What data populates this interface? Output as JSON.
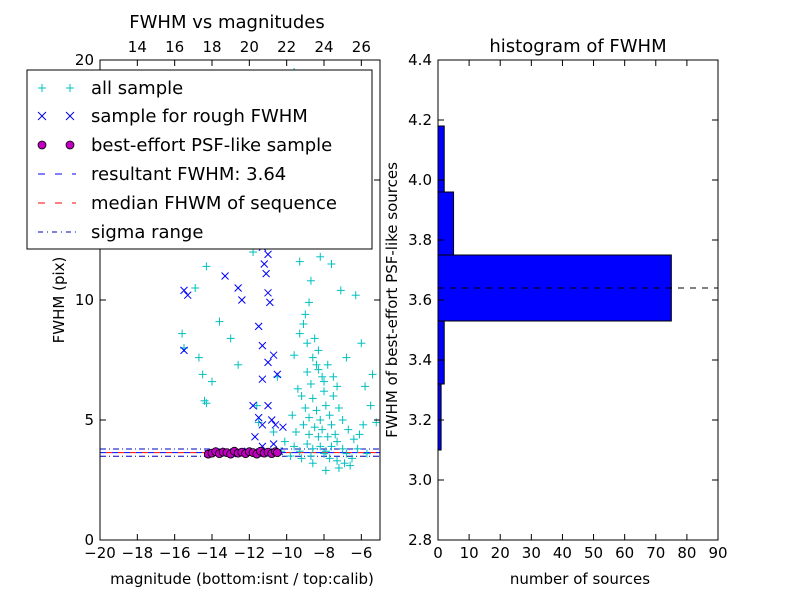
{
  "figure": {
    "colors": {
      "all_sample": "#00BFBF",
      "rough_sample": "#0000FF",
      "psf_face": "#BF00BF",
      "resultant": "#0000FF",
      "median": "#FF0000",
      "sigma": "#0000BF",
      "hist_bar": "#0000FF"
    }
  },
  "chart_data": [
    {
      "type": "scatter",
      "title": "FWHM vs magnitudes",
      "xlabel": "magnitude (bottom:isnt / top:calib)",
      "ylabel": "FWHM (pix)",
      "xlim": [
        -20,
        -5
      ],
      "ylim": [
        0,
        20
      ],
      "xticks": [
        -20,
        -18,
        -16,
        -14,
        -12,
        -10,
        -8,
        -6
      ],
      "xtick_labels": [
        "−20",
        "−18",
        "−16",
        "−14",
        "−12",
        "−10",
        "−8",
        "−6"
      ],
      "yticks": [
        0,
        5,
        10,
        15,
        20
      ],
      "ytick_labels": [
        "0",
        "5",
        "10",
        "15",
        "20"
      ],
      "top_xticks": [
        14,
        16,
        18,
        20,
        22,
        24,
        26
      ],
      "top_xtick_labels": [
        "14",
        "16",
        "18",
        "20",
        "22",
        "24",
        "26"
      ],
      "top_axis_offset": 32,
      "legend_position": "upper-left",
      "legend": [
        "all sample",
        "sample for rough FWHM",
        "best-effort PSF-like sample",
        "resultant FWHM: 3.64",
        "median FHWM of sequence",
        "sigma range"
      ],
      "series": [
        {
          "name": "all sample",
          "marker": "+",
          "points": [
            [
              -15.6,
              8.6
            ],
            [
              -15.5,
              8.0
            ],
            [
              -14.9,
              10.5
            ],
            [
              -14.7,
              7.6
            ],
            [
              -14.5,
              6.9
            ],
            [
              -14.4,
              5.8
            ],
            [
              -14.3,
              5.7
            ],
            [
              -14.0,
              6.6
            ],
            [
              -13.6,
              9.1
            ],
            [
              -13.0,
              8.4
            ],
            [
              -12.6,
              7.3
            ],
            [
              -13.4,
              13.7
            ],
            [
              -12.4,
              14.2
            ],
            [
              -14.3,
              11.4
            ],
            [
              -11.8,
              12.0
            ],
            [
              -11.6,
              5.6
            ],
            [
              -11.5,
              4.9
            ],
            [
              -11.0,
              12.5
            ],
            [
              -10.7,
              4.5
            ],
            [
              -10.5,
              6.8
            ],
            [
              -10.9,
              19.3
            ],
            [
              -12.2,
              19.2
            ],
            [
              -9.6,
              19.5
            ],
            [
              -9.9,
              18.9
            ],
            [
              -10.2,
              17.4
            ],
            [
              -9.1,
              16.6
            ],
            [
              -8.6,
              14.9
            ],
            [
              -8.9,
              12.7
            ],
            [
              -9.3,
              11.6
            ],
            [
              -8.2,
              11.8
            ],
            [
              -7.6,
              11.5
            ],
            [
              -7.8,
              12.9
            ],
            [
              -7.1,
              10.4
            ],
            [
              -6.3,
              10.2
            ],
            [
              -6.8,
              7.6
            ],
            [
              -6.0,
              8.2
            ],
            [
              -5.8,
              6.4
            ],
            [
              -5.4,
              6.9
            ],
            [
              -5.2,
              4.9
            ],
            [
              -5.5,
              5.6
            ],
            [
              -6.2,
              3.8
            ],
            [
              -5.7,
              3.6
            ],
            [
              -7.2,
              3.0
            ],
            [
              -7.9,
              2.9
            ],
            [
              -8.6,
              3.2
            ],
            [
              -9.2,
              3.4
            ],
            [
              -9.8,
              3.5
            ],
            [
              -10.3,
              3.7
            ],
            [
              -10.1,
              4.1
            ],
            [
              -9.7,
              5.2
            ],
            [
              -9.4,
              6.3
            ],
            [
              -9.6,
              7.7
            ],
            [
              -9.3,
              8.6
            ],
            [
              -9.0,
              9.4
            ],
            [
              -8.8,
              9.9
            ],
            [
              -8.7,
              10.8
            ],
            [
              -9.1,
              9.0
            ],
            [
              -8.5,
              8.4
            ],
            [
              -8.3,
              7.9
            ],
            [
              -8.4,
              7.3
            ],
            [
              -8.1,
              6.8
            ],
            [
              -8.0,
              6.2
            ],
            [
              -7.9,
              5.6
            ],
            [
              -7.7,
              5.2
            ],
            [
              -7.6,
              4.8
            ],
            [
              -7.4,
              4.4
            ],
            [
              -7.3,
              4.1
            ],
            [
              -7.0,
              3.8
            ],
            [
              -6.8,
              3.6
            ],
            [
              -6.5,
              3.4
            ],
            [
              -8.9,
              7.0
            ],
            [
              -8.7,
              6.5
            ],
            [
              -8.6,
              5.9
            ],
            [
              -8.4,
              5.4
            ],
            [
              -8.2,
              5.0
            ],
            [
              -8.1,
              4.6
            ],
            [
              -7.8,
              4.3
            ],
            [
              -9.2,
              6.0
            ],
            [
              -9.0,
              5.5
            ],
            [
              -8.8,
              5.1
            ],
            [
              -8.5,
              4.7
            ],
            [
              -8.3,
              4.3
            ],
            [
              -7.5,
              6.0
            ],
            [
              -7.2,
              5.5
            ],
            [
              -7.0,
              5.0
            ],
            [
              -6.7,
              4.6
            ],
            [
              -6.4,
              4.2
            ],
            [
              -6.1,
              4.4
            ],
            [
              -5.9,
              4.8
            ],
            [
              -8.9,
              8.2
            ],
            [
              -8.6,
              7.6
            ],
            [
              -8.3,
              7.1
            ],
            [
              -8.0,
              6.6
            ],
            [
              -7.8,
              7.3
            ],
            [
              -7.5,
              6.8
            ],
            [
              -7.3,
              6.4
            ],
            [
              -9.5,
              4.5
            ],
            [
              -9.6,
              3.9
            ],
            [
              -8.9,
              4.0
            ],
            [
              -8.6,
              3.8
            ],
            [
              -8.0,
              3.6
            ],
            [
              -7.7,
              3.4
            ],
            [
              -7.3,
              3.3
            ],
            [
              -6.9,
              3.2
            ],
            [
              -6.6,
              3.1
            ],
            [
              -9.1,
              4.8
            ],
            [
              -8.8,
              4.4
            ],
            [
              -8.7,
              3.5
            ],
            [
              -8.2,
              3.9
            ],
            [
              -7.9,
              3.7
            ],
            [
              -7.6,
              3.9
            ],
            [
              -9.3,
              3.7
            ]
          ]
        },
        {
          "name": "sample for rough FWHM",
          "marker": "x",
          "points": [
            [
              -15.5,
              10.4
            ],
            [
              -15.3,
              10.2
            ],
            [
              -15.5,
              7.9
            ],
            [
              -13.3,
              11.0
            ],
            [
              -12.6,
              10.5
            ],
            [
              -12.4,
              10.0
            ],
            [
              -12.0,
              13.0
            ],
            [
              -11.6,
              12.9
            ],
            [
              -11.3,
              12.2
            ],
            [
              -11.2,
              11.5
            ],
            [
              -11.0,
              11.9
            ],
            [
              -11.1,
              11.1
            ],
            [
              -11.0,
              10.3
            ],
            [
              -10.9,
              9.9
            ],
            [
              -11.5,
              8.9
            ],
            [
              -11.3,
              8.1
            ],
            [
              -11.0,
              7.4
            ],
            [
              -10.7,
              7.7
            ],
            [
              -10.5,
              6.9
            ],
            [
              -11.3,
              6.7
            ],
            [
              -11.8,
              5.6
            ],
            [
              -11.5,
              5.1
            ],
            [
              -11.3,
              4.8
            ],
            [
              -11.0,
              5.6
            ],
            [
              -10.8,
              5.0
            ],
            [
              -10.6,
              4.8
            ],
            [
              -10.2,
              4.7
            ],
            [
              -11.7,
              4.3
            ],
            [
              -11.3,
              3.9
            ],
            [
              -10.7,
              4.0
            ],
            [
              -12.1,
              3.7
            ],
            [
              -12.9,
              3.6
            ],
            [
              -13.6,
              3.7
            ],
            [
              -14.2,
              3.6
            ],
            [
              -10.4,
              3.7
            ]
          ]
        },
        {
          "name": "best-effort PSF-like sample",
          "marker": "o",
          "points": [
            [
              -14.2,
              3.58
            ],
            [
              -14.0,
              3.62
            ],
            [
              -13.8,
              3.68
            ],
            [
              -13.6,
              3.6
            ],
            [
              -13.4,
              3.66
            ],
            [
              -13.2,
              3.64
            ],
            [
              -13.0,
              3.58
            ],
            [
              -12.8,
              3.7
            ],
            [
              -12.6,
              3.62
            ],
            [
              -12.4,
              3.66
            ],
            [
              -12.2,
              3.6
            ],
            [
              -12.0,
              3.68
            ],
            [
              -11.8,
              3.64
            ],
            [
              -11.6,
              3.58
            ],
            [
              -11.4,
              3.7
            ],
            [
              -11.2,
              3.62
            ],
            [
              -11.0,
              3.66
            ],
            [
              -10.8,
              3.6
            ],
            [
              -10.6,
              3.68
            ],
            [
              -10.5,
              3.64
            ]
          ]
        }
      ],
      "hlines": [
        {
          "name": "resultant FWHM: 3.64",
          "y": 3.64,
          "style": "dashed",
          "x_range": [
            -20,
            -5
          ]
        },
        {
          "name": "median FHWM of sequence",
          "y": 3.64,
          "style": "dashed",
          "x_range": [
            -20,
            -5
          ]
        },
        {
          "name": "sigma range",
          "y": 3.79,
          "style": "dashdot",
          "x_range": [
            -20,
            -5
          ]
        },
        {
          "name": "sigma range",
          "y": 3.49,
          "style": "dashdot",
          "x_range": [
            -20,
            -5
          ]
        }
      ]
    },
    {
      "type": "bar",
      "orientation": "horizontal",
      "title": "histogram of FWHM",
      "xlabel": "number of sources",
      "ylabel": "FWHM of best-effort PSF-like sources",
      "xlim": [
        0,
        90
      ],
      "ylim": [
        2.8,
        4.4
      ],
      "xticks": [
        0,
        10,
        20,
        30,
        40,
        50,
        60,
        70,
        80,
        90
      ],
      "xtick_labels": [
        "0",
        "10",
        "20",
        "30",
        "40",
        "50",
        "60",
        "70",
        "80",
        "90"
      ],
      "yticks": [
        2.8,
        3.0,
        3.2,
        3.4,
        3.6,
        3.8,
        4.0,
        4.2,
        4.4
      ],
      "ytick_labels": [
        "2.8",
        "3.0",
        "3.2",
        "3.4",
        "3.6",
        "3.8",
        "4.0",
        "4.2",
        "4.4"
      ],
      "bins": [
        {
          "y0": 3.1,
          "y1": 3.32,
          "count": 1
        },
        {
          "y0": 3.32,
          "y1": 3.53,
          "count": 2
        },
        {
          "y0": 3.53,
          "y1": 3.75,
          "count": 75
        },
        {
          "y0": 3.75,
          "y1": 3.96,
          "count": 5
        },
        {
          "y0": 3.96,
          "y1": 4.18,
          "count": 2
        }
      ],
      "hline": {
        "y": 3.64,
        "style": "dashed"
      }
    }
  ]
}
